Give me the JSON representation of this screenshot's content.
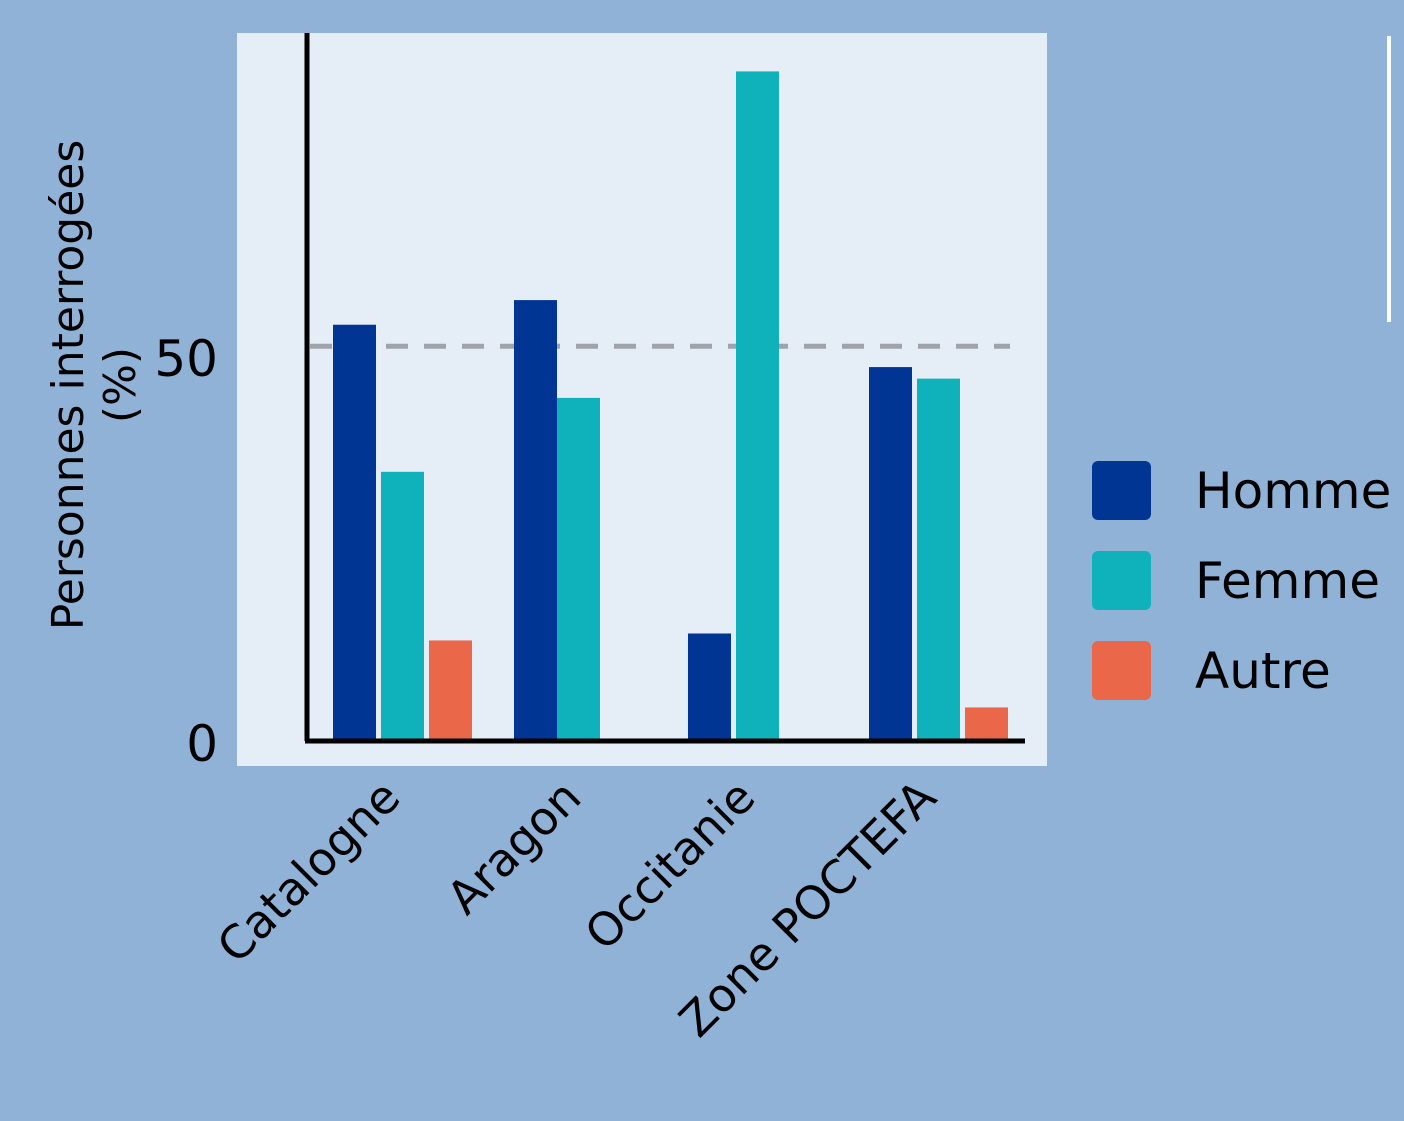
{
  "chart_data": {
    "type": "bar",
    "ylabel": "Personnes interrogées (%)",
    "categories": [
      "Catalogne",
      "Aragon",
      "Occitanie",
      "Zone POCTEFA"
    ],
    "yticks": [
      0,
      50
    ],
    "ylim": [
      0,
      87
    ],
    "reference_line": 51,
    "legend_position": "right",
    "grid": false,
    "series": [
      {
        "name": "Homme",
        "color": "#003594",
        "values": [
          53.8,
          57,
          13.7,
          48.3
        ]
      },
      {
        "name": "Femme",
        "color": "#0fb2bb",
        "values": [
          34.7,
          44.3,
          86.7,
          46.8
        ]
      },
      {
        "name": "Autre",
        "color": "#ea674a",
        "values": [
          12.8,
          null,
          null,
          4.1
        ]
      }
    ]
  },
  "colors": {
    "page_background": "#90b2d6",
    "plot_background": "#e5edf6",
    "axis": "#000000",
    "reference_line": "#a0a4aa"
  }
}
